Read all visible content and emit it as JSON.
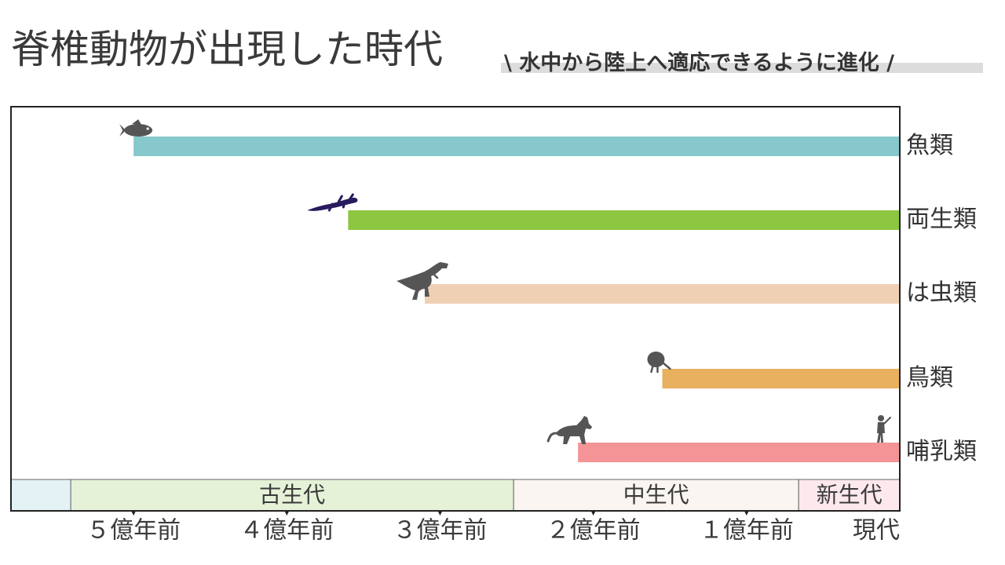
{
  "title": "脊椎動物が出現した時代",
  "subtitle": "\\ 水中から陸上へ適応できるように進化 /",
  "chart_data": {
    "type": "bar",
    "orientation": "horizontal",
    "x_unit": "億年前",
    "xlim": [
      5.8,
      0
    ],
    "series": [
      {
        "name": "魚類",
        "start": 5.0,
        "end": 0,
        "color": "#86c8cc",
        "icon": "fish-icon"
      },
      {
        "name": "両生類",
        "start": 3.6,
        "end": 0,
        "color": "#8dc63f",
        "icon": "salamander-icon"
      },
      {
        "name": "は虫類",
        "start": 3.1,
        "end": 0,
        "color": "#f0d0b5",
        "icon": "dinosaur-icon"
      },
      {
        "name": "鳥類",
        "start": 1.55,
        "end": 0,
        "color": "#e9b060",
        "icon": "kiwi-bird-icon"
      },
      {
        "name": "哺乳類",
        "start": 2.1,
        "end": 0,
        "color": "#f49496",
        "icon": "horse-icon"
      }
    ],
    "eras": [
      {
        "label": "",
        "start": 5.8,
        "end": 5.41,
        "color": "#e2f2f5"
      },
      {
        "label": "古生代",
        "start": 5.41,
        "end": 2.52,
        "color": "#e5f2d8"
      },
      {
        "label": "中生代",
        "start": 2.52,
        "end": 0.66,
        "color": "#faf5f0"
      },
      {
        "label": "新生代",
        "start": 0.66,
        "end": 0,
        "color": "#fce8ed"
      }
    ],
    "ticks": [
      {
        "value": 5,
        "label": "５億年前"
      },
      {
        "value": 4,
        "label": "４億年前"
      },
      {
        "value": 3,
        "label": "３億年前"
      },
      {
        "value": 2,
        "label": "２億年前"
      },
      {
        "value": 1,
        "label": "１億年前"
      },
      {
        "value": 0,
        "label": "現代"
      }
    ],
    "present_icon": "human-icon"
  }
}
